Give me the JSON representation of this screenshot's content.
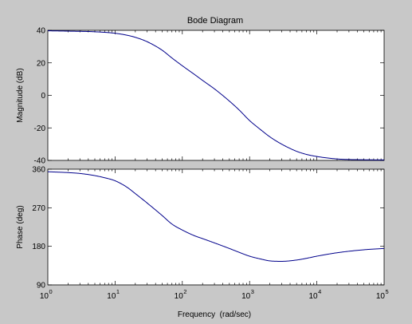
{
  "chart_data": {
    "type": "line",
    "title": "Bode Diagram",
    "xlabel": "Frequency  (rad/sec)",
    "x_scale": "log",
    "xlim": [
      1,
      100000
    ],
    "x_ticks": [
      {
        "value": 1,
        "base": "10",
        "exp": "0"
      },
      {
        "value": 10,
        "base": "10",
        "exp": "1"
      },
      {
        "value": 100,
        "base": "10",
        "exp": "2"
      },
      {
        "value": 1000,
        "base": "10",
        "exp": "3"
      },
      {
        "value": 10000,
        "base": "10",
        "exp": "4"
      },
      {
        "value": 100000,
        "base": "10",
        "exp": "5"
      }
    ],
    "line_color": "#00008b",
    "axes_color": "#ffffff",
    "figure_color": "#c8c8c8",
    "grid": false,
    "panels": [
      {
        "id": "magnitude",
        "ylabel": "Magnitude (dB)",
        "ylim": [
          -40,
          40
        ],
        "y_ticks": [
          {
            "value": 40,
            "label": "40"
          },
          {
            "value": 20,
            "label": "20"
          },
          {
            "value": 0,
            "label": "0"
          },
          {
            "value": -20,
            "label": "-20"
          },
          {
            "value": -40,
            "label": "-40"
          }
        ],
        "x": [
          1,
          2,
          5,
          10,
          15,
          20,
          30,
          50,
          70,
          100,
          150,
          200,
          300,
          500,
          700,
          1000,
          1500,
          2000,
          3000,
          5000,
          7000,
          10000,
          20000,
          50000,
          100000
        ],
        "y": [
          39.7,
          39.5,
          39.1,
          38.2,
          37.0,
          35.7,
          33.0,
          27.8,
          23.0,
          18.2,
          13.0,
          9.2,
          4.0,
          -3.5,
          -9.0,
          -15.5,
          -21.5,
          -25.5,
          -30.0,
          -34.4,
          -36.3,
          -37.6,
          -39.1,
          -39.6,
          -39.7
        ]
      },
      {
        "id": "phase",
        "ylabel": "Phase (deg)",
        "ylim": [
          90,
          360
        ],
        "y_ticks": [
          {
            "value": 360,
            "label": "360"
          },
          {
            "value": 270,
            "label": "270"
          },
          {
            "value": 180,
            "label": "180"
          },
          {
            "value": 90,
            "label": "90"
          }
        ],
        "x": [
          1,
          2,
          3,
          5,
          7,
          10,
          15,
          20,
          30,
          50,
          70,
          100,
          150,
          200,
          300,
          500,
          700,
          1000,
          1500,
          2000,
          3000,
          5000,
          7000,
          10000,
          20000,
          50000,
          100000
        ],
        "y": [
          354,
          352,
          350,
          345,
          340,
          333,
          318,
          303,
          281,
          252,
          232,
          218,
          205,
          198,
          188,
          175,
          166,
          157,
          150,
          146,
          145,
          148,
          152,
          157,
          165,
          172,
          175
        ]
      }
    ]
  }
}
